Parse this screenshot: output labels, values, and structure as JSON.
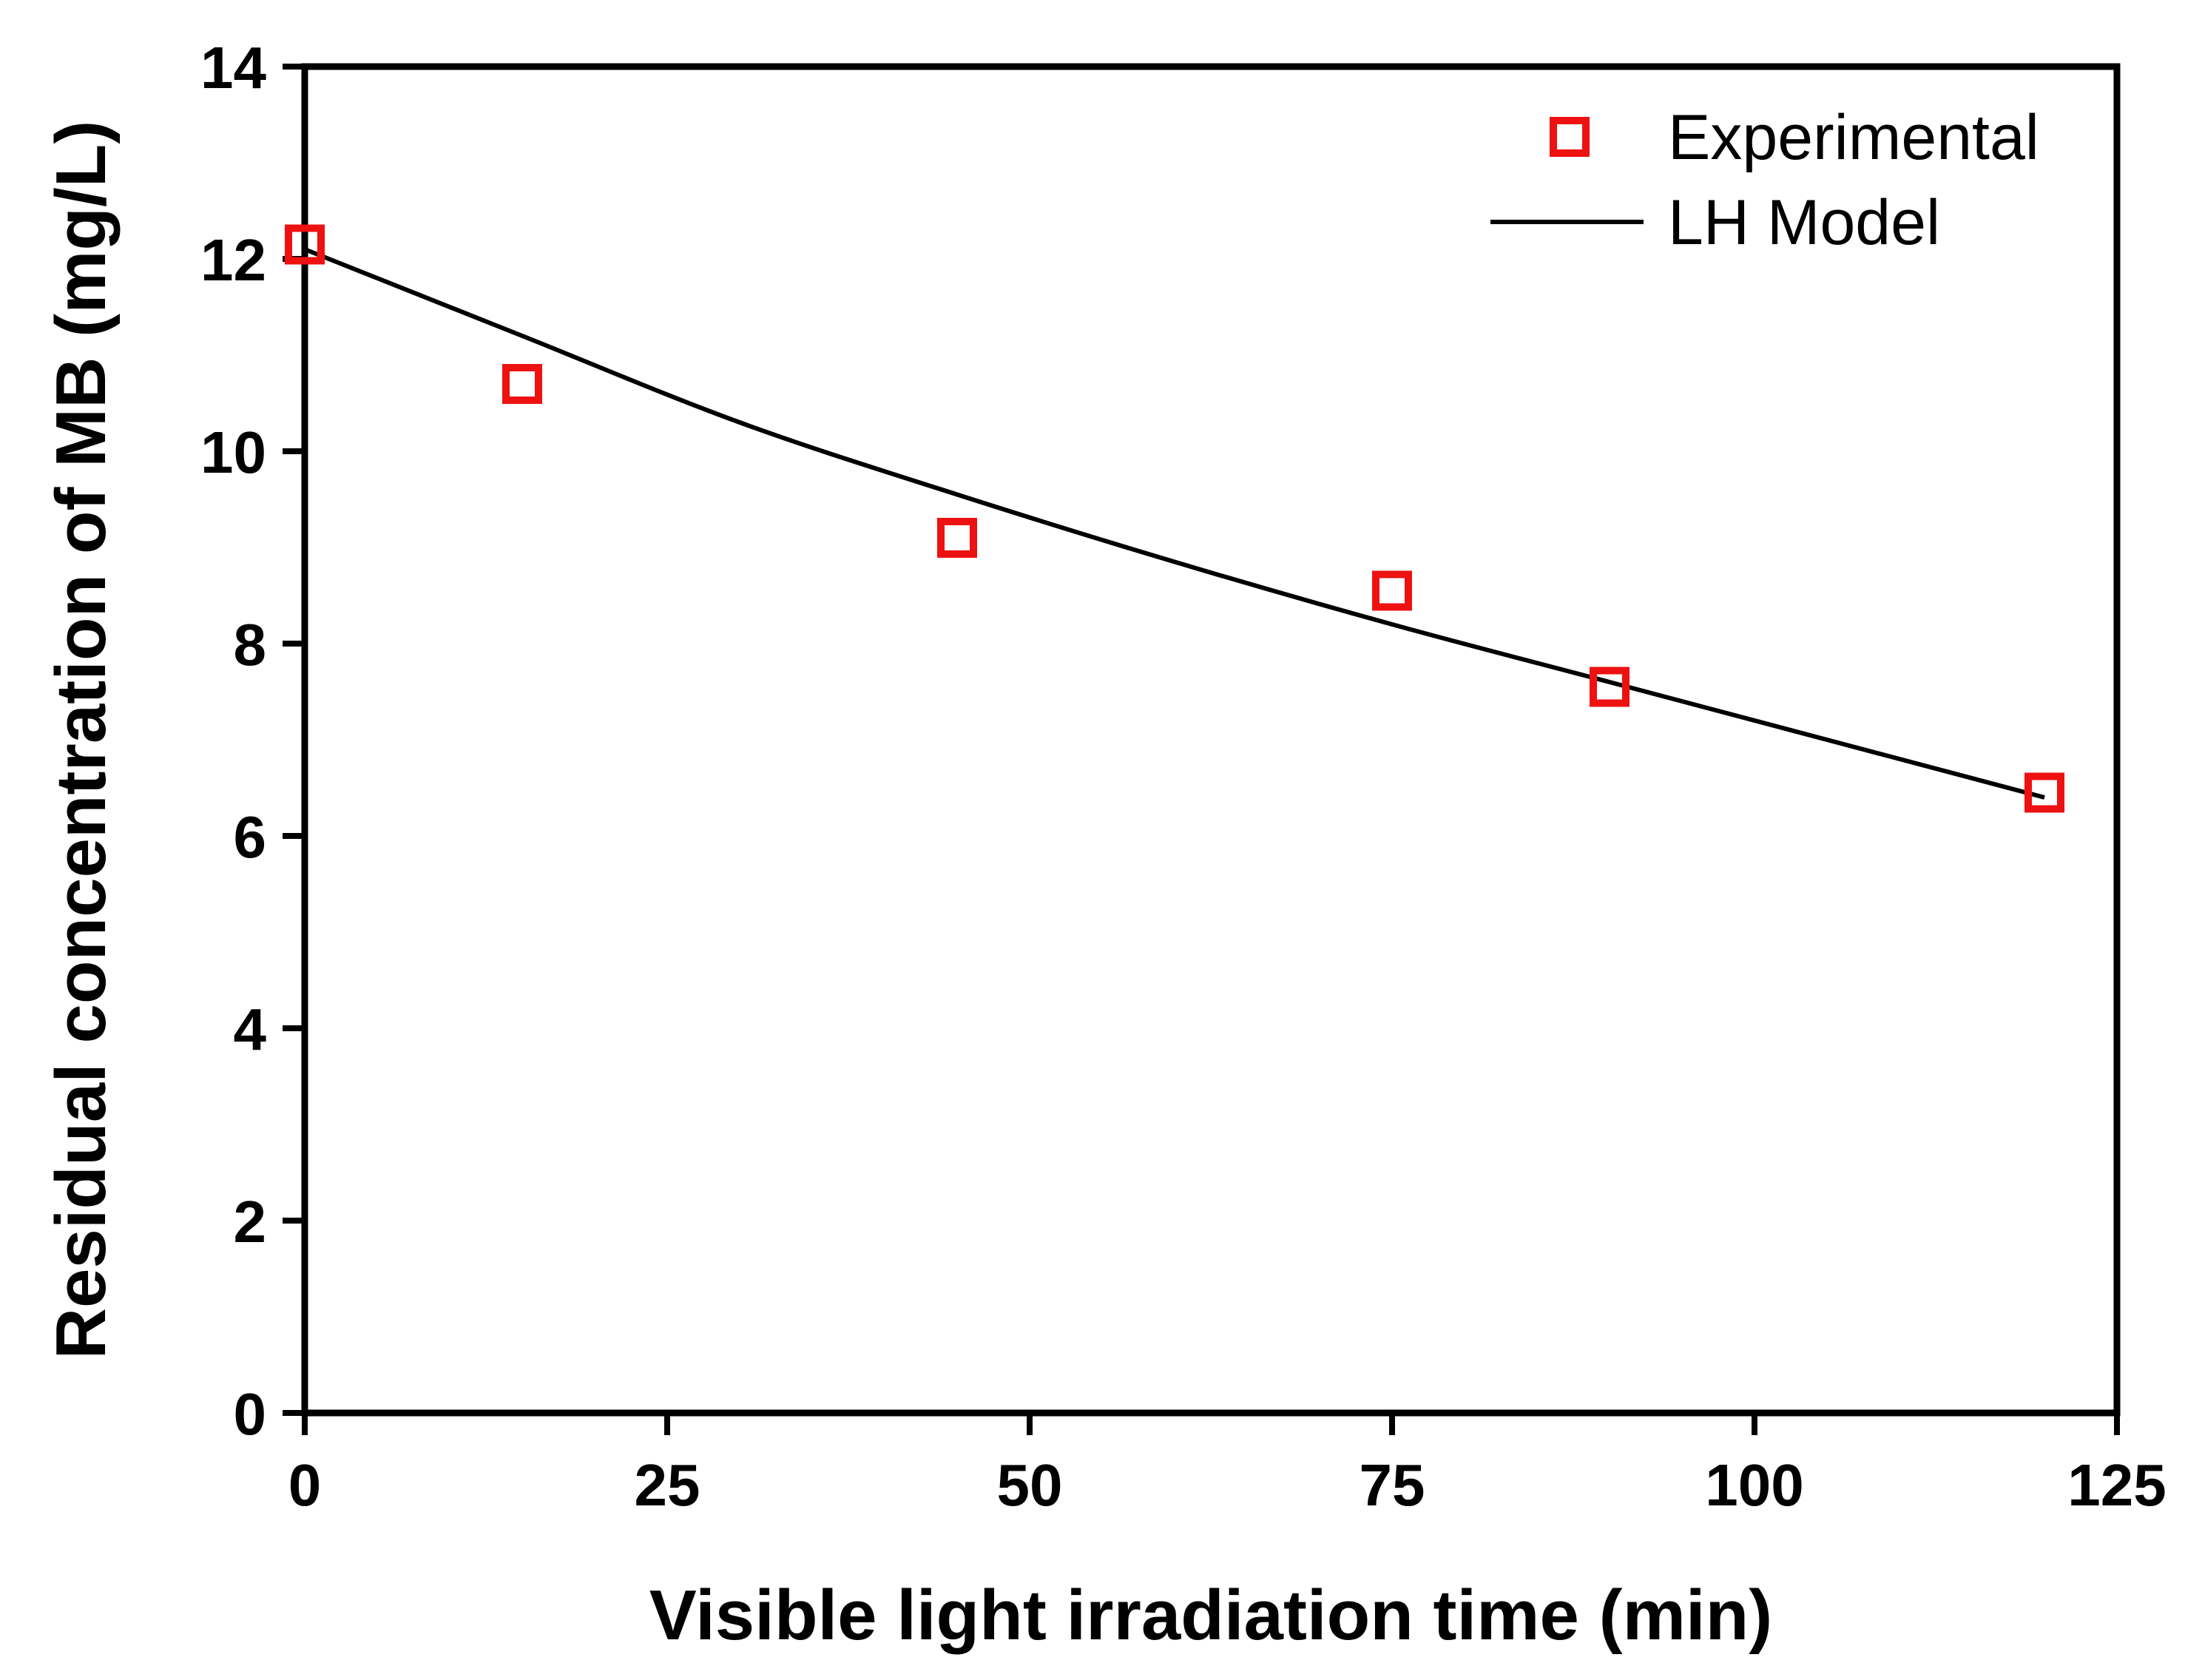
{
  "chart_data": {
    "type": "scatter",
    "title": "",
    "xlabel": "Visible light irradiation time (min)",
    "ylabel": "Residual concentration of MB (mg/L)",
    "xlim": [
      0,
      125
    ],
    "ylim": [
      0,
      14
    ],
    "x_ticks": [
      0,
      25,
      50,
      75,
      100,
      125
    ],
    "x_tick_labels": [
      "0",
      "25",
      "50",
      "75",
      "100",
      "125"
    ],
    "y_ticks": [
      0,
      2,
      4,
      6,
      8,
      10,
      12,
      14
    ],
    "y_tick_labels": [
      "0",
      "2",
      "4",
      "6",
      "8",
      "10",
      "12",
      "14"
    ],
    "grid": false,
    "legend_position": "top-right",
    "series": [
      {
        "name": "Experimental",
        "kind": "marker",
        "marker": "hollow-square",
        "color": "#ee1111",
        "x": [
          0,
          15,
          45,
          75,
          90,
          120
        ],
        "y": [
          12.15,
          10.7,
          9.1,
          8.55,
          7.55,
          6.45
        ]
      },
      {
        "name": "LH Model",
        "kind": "line",
        "color": "#000000",
        "x": [
          0,
          15,
          30,
          45,
          60,
          75,
          90,
          105,
          120
        ],
        "y": [
          12.1,
          11.2,
          10.3,
          9.55,
          8.85,
          8.2,
          7.6,
          7.0,
          6.4
        ]
      }
    ]
  }
}
